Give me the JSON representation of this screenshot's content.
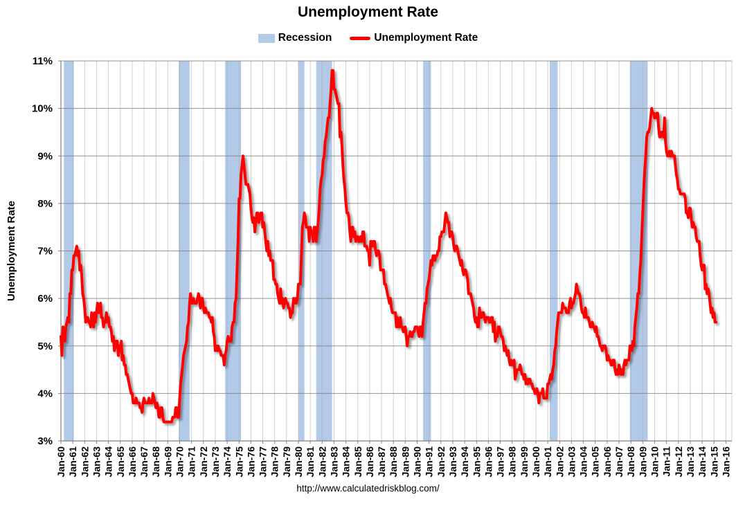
{
  "chart": {
    "title": "Unemployment Rate",
    "source_url": "http://www.calculatedriskblog.com/"
  },
  "legend": {
    "recession_label": "Recession",
    "series_label": "Unemployment Rate"
  },
  "colors": {
    "recession_band": "#b3c9e8",
    "line": "#ff0000",
    "grid_vertical": "#aaaaaa",
    "grid_horizontal": "#808080",
    "axis": "#7f7f7f",
    "text": "#000000",
    "background": "#ffffff"
  },
  "chart_data": {
    "type": "line",
    "title": "Unemployment Rate",
    "ylabel": "Unemployment Rate",
    "xlabel": "",
    "ylim": [
      3,
      11
    ],
    "y_tick_labels": [
      "3%",
      "4%",
      "5%",
      "6%",
      "7%",
      "8%",
      "9%",
      "10%",
      "11%"
    ],
    "x_start_year": 1960,
    "x_end_year": 2016,
    "x_tick_labels": [
      "Jan-60",
      "Jan-61",
      "Jan-62",
      "Jan-63",
      "Jan-64",
      "Jan-65",
      "Jan-66",
      "Jan-67",
      "Jan-68",
      "Jan-69",
      "Jan-70",
      "Jan-71",
      "Jan-72",
      "Jan-73",
      "Jan-74",
      "Jan-75",
      "Jan-76",
      "Jan-77",
      "Jan-78",
      "Jan-79",
      "Jan-80",
      "Jan-81",
      "Jan-82",
      "Jan-83",
      "Jan-84",
      "Jan-85",
      "Jan-86",
      "Jan-87",
      "Jan-88",
      "Jan-89",
      "Jan-90",
      "Jan-91",
      "Jan-92",
      "Jan-93",
      "Jan-94",
      "Jan-95",
      "Jan-96",
      "Jan-97",
      "Jan-98",
      "Jan-99",
      "Jan-00",
      "Jan-01",
      "Jan-02",
      "Jan-03",
      "Jan-04",
      "Jan-05",
      "Jan-06",
      "Jan-07",
      "Jan-08",
      "Jan-09",
      "Jan-10",
      "Jan-11",
      "Jan-12",
      "Jan-13",
      "Jan-14",
      "Jan-15",
      "Jan-16"
    ],
    "grid": true,
    "legend_position": "top",
    "recessions": [
      [
        1960.25,
        1961.083
      ],
      [
        1969.917,
        1970.833
      ],
      [
        1973.833,
        1975.167
      ],
      [
        1980.0,
        1980.5
      ],
      [
        1981.5,
        1982.833
      ],
      [
        1990.5,
        1991.167
      ],
      [
        2001.167,
        2001.833
      ],
      [
        2007.917,
        2009.417
      ]
    ],
    "series": [
      {
        "name": "Unemployment Rate",
        "color": "#ff0000",
        "frequency": "monthly",
        "start_year": 1960,
        "values": [
          5.2,
          4.8,
          5.4,
          5.2,
          5.1,
          5.4,
          5.5,
          5.6,
          5.5,
          6.1,
          6.1,
          6.6,
          6.6,
          6.9,
          6.9,
          7.0,
          7.1,
          6.9,
          7.0,
          6.6,
          6.7,
          6.5,
          6.1,
          6.0,
          5.8,
          5.5,
          5.6,
          5.6,
          5.5,
          5.5,
          5.4,
          5.7,
          5.6,
          5.4,
          5.7,
          5.5,
          5.7,
          5.9,
          5.7,
          5.7,
          5.9,
          5.6,
          5.6,
          5.4,
          5.5,
          5.5,
          5.7,
          5.5,
          5.6,
          5.4,
          5.4,
          5.3,
          5.1,
          5.2,
          4.9,
          5.0,
          5.1,
          5.1,
          4.8,
          5.0,
          4.9,
          5.1,
          4.7,
          4.8,
          4.6,
          4.6,
          4.4,
          4.4,
          4.3,
          4.2,
          4.1,
          4.0,
          4.0,
          3.8,
          3.8,
          3.8,
          3.9,
          3.8,
          3.8,
          3.8,
          3.7,
          3.7,
          3.6,
          3.8,
          3.9,
          3.8,
          3.8,
          3.8,
          3.8,
          3.9,
          3.8,
          3.8,
          3.8,
          4.0,
          3.9,
          3.8,
          3.7,
          3.8,
          3.7,
          3.5,
          3.5,
          3.7,
          3.7,
          3.5,
          3.4,
          3.4,
          3.4,
          3.4,
          3.4,
          3.4,
          3.4,
          3.4,
          3.4,
          3.5,
          3.5,
          3.5,
          3.7,
          3.7,
          3.5,
          3.5,
          3.9,
          4.2,
          4.4,
          4.6,
          4.8,
          4.9,
          5.0,
          5.1,
          5.4,
          5.5,
          5.9,
          6.1,
          5.9,
          5.9,
          6.0,
          5.9,
          5.9,
          5.9,
          6.0,
          6.1,
          6.0,
          5.8,
          6.0,
          6.0,
          5.8,
          5.7,
          5.8,
          5.7,
          5.7,
          5.7,
          5.6,
          5.6,
          5.5,
          5.6,
          5.3,
          5.2,
          4.9,
          5.0,
          4.9,
          5.0,
          4.9,
          4.9,
          4.8,
          4.8,
          4.8,
          4.6,
          4.8,
          4.9,
          5.1,
          5.2,
          5.1,
          5.1,
          5.1,
          5.4,
          5.5,
          5.5,
          5.9,
          6.0,
          6.6,
          7.2,
          8.1,
          8.1,
          8.6,
          8.8,
          9.0,
          8.8,
          8.6,
          8.4,
          8.4,
          8.4,
          8.3,
          8.2,
          7.9,
          7.7,
          7.6,
          7.7,
          7.4,
          7.6,
          7.8,
          7.8,
          7.6,
          7.7,
          7.8,
          7.8,
          7.5,
          7.6,
          7.4,
          7.2,
          7.0,
          7.2,
          6.9,
          7.0,
          6.8,
          6.8,
          6.8,
          6.4,
          6.4,
          6.3,
          6.3,
          6.1,
          6.0,
          5.9,
          6.2,
          5.9,
          6.0,
          5.8,
          5.9,
          6.0,
          5.9,
          5.9,
          5.8,
          5.8,
          5.6,
          5.7,
          5.7,
          6.0,
          5.9,
          6.0,
          5.9,
          6.0,
          6.3,
          6.3,
          6.3,
          6.9,
          7.5,
          7.6,
          7.8,
          7.7,
          7.5,
          7.5,
          7.5,
          7.2,
          7.5,
          7.4,
          7.4,
          7.2,
          7.5,
          7.5,
          7.2,
          7.4,
          7.6,
          7.9,
          8.3,
          8.5,
          8.6,
          8.9,
          9.0,
          9.3,
          9.4,
          9.6,
          9.8,
          9.8,
          10.1,
          10.4,
          10.8,
          10.8,
          10.4,
          10.4,
          10.3,
          10.2,
          10.1,
          10.1,
          9.4,
          9.5,
          9.2,
          8.8,
          8.5,
          8.3,
          8.0,
          7.8,
          7.8,
          7.7,
          7.4,
          7.2,
          7.5,
          7.5,
          7.3,
          7.4,
          7.2,
          7.3,
          7.3,
          7.2,
          7.2,
          7.3,
          7.2,
          7.4,
          7.4,
          7.1,
          7.1,
          7.1,
          7.0,
          7.0,
          6.7,
          7.2,
          7.2,
          7.1,
          7.2,
          7.2,
          7.0,
          6.9,
          7.0,
          7.0,
          6.9,
          6.6,
          6.6,
          6.6,
          6.6,
          6.3,
          6.3,
          6.2,
          6.1,
          6.0,
          5.9,
          6.0,
          5.8,
          5.7,
          5.7,
          5.7,
          5.7,
          5.4,
          5.6,
          5.4,
          5.4,
          5.6,
          5.4,
          5.4,
          5.3,
          5.3,
          5.4,
          5.2,
          5.0,
          5.2,
          5.2,
          5.3,
          5.2,
          5.2,
          5.3,
          5.3,
          5.4,
          5.4,
          5.4,
          5.3,
          5.2,
          5.4,
          5.4,
          5.2,
          5.5,
          5.7,
          5.9,
          5.9,
          6.2,
          6.3,
          6.4,
          6.6,
          6.8,
          6.7,
          6.9,
          6.9,
          6.8,
          6.9,
          6.9,
          7.0,
          7.0,
          7.3,
          7.3,
          7.4,
          7.4,
          7.4,
          7.6,
          7.8,
          7.7,
          7.6,
          7.6,
          7.3,
          7.4,
          7.4,
          7.3,
          7.1,
          7.0,
          7.1,
          7.1,
          7.0,
          6.9,
          6.8,
          6.7,
          6.8,
          6.6,
          6.5,
          6.6,
          6.6,
          6.5,
          6.4,
          6.1,
          6.1,
          6.1,
          6.0,
          5.9,
          5.8,
          5.6,
          5.5,
          5.6,
          5.4,
          5.4,
          5.8,
          5.6,
          5.6,
          5.7,
          5.7,
          5.6,
          5.5,
          5.6,
          5.6,
          5.6,
          5.5,
          5.5,
          5.6,
          5.6,
          5.3,
          5.5,
          5.1,
          5.2,
          5.2,
          5.4,
          5.4,
          5.3,
          5.2,
          5.2,
          5.1,
          4.9,
          5.0,
          4.9,
          4.8,
          4.9,
          4.7,
          4.6,
          4.7,
          4.6,
          4.6,
          4.7,
          4.3,
          4.4,
          4.5,
          4.5,
          4.5,
          4.6,
          4.5,
          4.4,
          4.4,
          4.3,
          4.4,
          4.2,
          4.3,
          4.2,
          4.3,
          4.3,
          4.2,
          4.2,
          4.1,
          4.1,
          4.0,
          4.0,
          4.1,
          4.0,
          3.8,
          4.0,
          4.0,
          4.0,
          4.1,
          3.9,
          3.9,
          3.9,
          3.9,
          4.2,
          4.2,
          4.3,
          4.4,
          4.3,
          4.5,
          4.6,
          4.9,
          5.0,
          5.3,
          5.5,
          5.7,
          5.7,
          5.7,
          5.7,
          5.9,
          5.8,
          5.8,
          5.8,
          5.7,
          5.7,
          5.7,
          5.9,
          6.0,
          5.8,
          5.9,
          5.9,
          6.0,
          6.1,
          6.3,
          6.2,
          6.1,
          6.1,
          6.0,
          5.8,
          5.7,
          5.7,
          5.6,
          5.8,
          5.6,
          5.6,
          5.6,
          5.5,
          5.4,
          5.4,
          5.5,
          5.4,
          5.4,
          5.3,
          5.4,
          5.2,
          5.2,
          5.1,
          5.0,
          5.0,
          4.9,
          5.0,
          5.0,
          5.0,
          4.9,
          4.7,
          4.8,
          4.7,
          4.7,
          4.6,
          4.6,
          4.7,
          4.7,
          4.5,
          4.4,
          4.5,
          4.4,
          4.6,
          4.5,
          4.4,
          4.5,
          4.4,
          4.6,
          4.7,
          4.6,
          4.7,
          4.7,
          4.7,
          5.0,
          5.0,
          4.9,
          5.1,
          5.0,
          5.4,
          5.6,
          5.8,
          6.1,
          6.1,
          6.5,
          6.8,
          7.3,
          7.8,
          8.3,
          8.7,
          9.0,
          9.4,
          9.5,
          9.5,
          9.6,
          9.8,
          10.0,
          9.9,
          9.9,
          9.8,
          9.8,
          9.9,
          9.9,
          9.6,
          9.4,
          9.4,
          9.5,
          9.5,
          9.4,
          9.8,
          9.3,
          9.1,
          9.0,
          9.0,
          9.1,
          9.0,
          9.1,
          9.0,
          9.0,
          9.0,
          8.8,
          8.6,
          8.5,
          8.3,
          8.3,
          8.2,
          8.2,
          8.2,
          8.2,
          8.2,
          8.1,
          7.8,
          7.8,
          7.7,
          7.9,
          7.9,
          7.7,
          7.5,
          7.6,
          7.5,
          7.5,
          7.3,
          7.2,
          7.2,
          7.2,
          6.9,
          6.7,
          6.6,
          6.7,
          6.7,
          6.2,
          6.3,
          6.1,
          6.2,
          6.1,
          5.9,
          5.7,
          5.8,
          5.6,
          5.7,
          5.5,
          5.5
        ]
      }
    ]
  }
}
